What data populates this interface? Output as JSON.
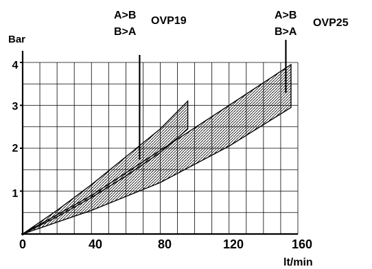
{
  "chart_data": {
    "type": "area",
    "xlabel": "lt/min",
    "ylabel": "Bar",
    "xlim": [
      0,
      160
    ],
    "ylim": [
      0,
      4
    ],
    "x_ticks": [
      "0",
      "40",
      "80",
      "120",
      "160"
    ],
    "y_ticks": [
      "1",
      "2",
      "3",
      "4"
    ],
    "grid": true,
    "series": [
      {
        "name": "OVP19",
        "annotation": [
          "A>B",
          "B>A"
        ],
        "band": {
          "upper": [
            [
              0,
              0
            ],
            [
              20,
              0.55
            ],
            [
              40,
              1.15
            ],
            [
              60,
              1.8
            ],
            [
              80,
              2.45
            ],
            [
              96,
              3.1
            ]
          ],
          "lower": [
            [
              0,
              0
            ],
            [
              20,
              0.4
            ],
            [
              40,
              0.85
            ],
            [
              60,
              1.35
            ],
            [
              80,
              1.9
            ],
            [
              96,
              2.45
            ]
          ]
        },
        "pointer_x": 68
      },
      {
        "name": "OVP25",
        "annotation": [
          "A>B",
          "B>A"
        ],
        "band": {
          "upper": [
            [
              0,
              0
            ],
            [
              40,
              0.9
            ],
            [
              80,
              1.95
            ],
            [
              120,
              3.0
            ],
            [
              156,
              3.95
            ]
          ],
          "lower": [
            [
              0,
              0
            ],
            [
              40,
              0.55
            ],
            [
              80,
              1.2
            ],
            [
              120,
              2.05
            ],
            [
              156,
              2.95
            ]
          ]
        },
        "pointer_x": 153
      }
    ]
  }
}
